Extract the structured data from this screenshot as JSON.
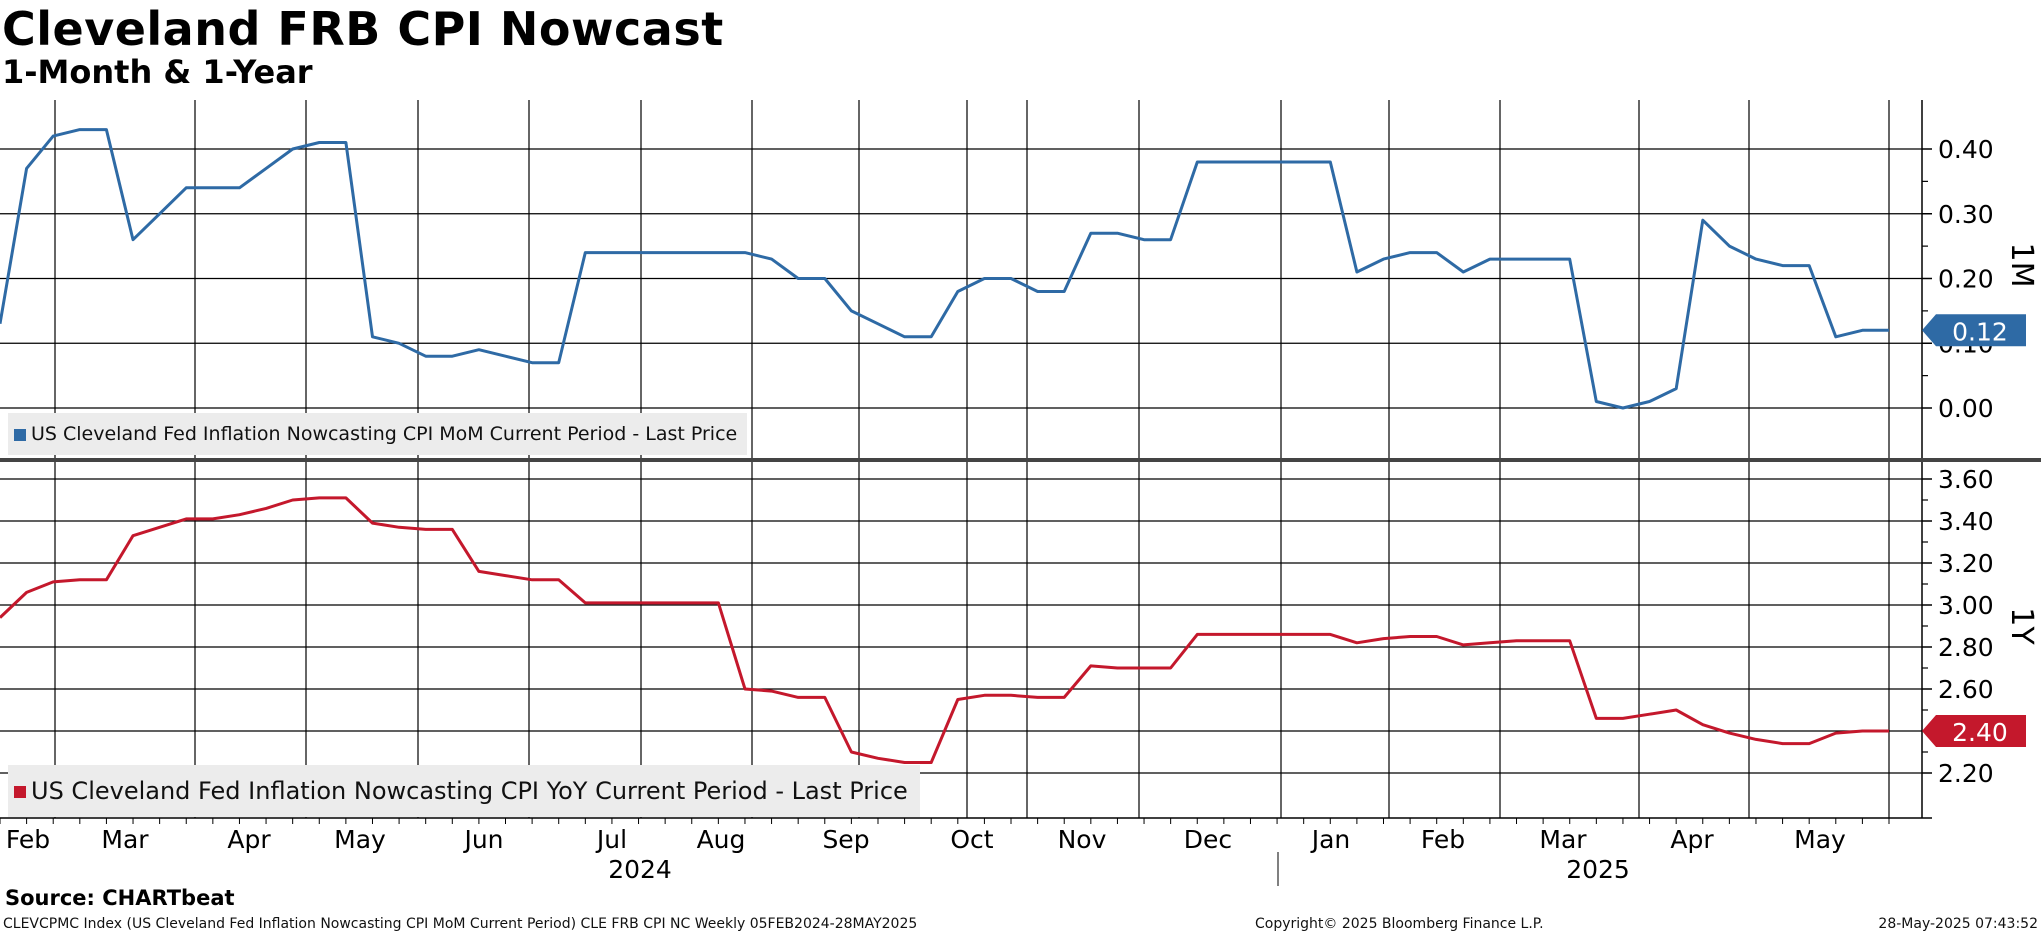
{
  "title": "Cleveland FRB CPI Nowcast",
  "subtitle": "1-Month & 1-Year",
  "source_label": "Source: CHARTbeat",
  "footer": {
    "left": "CLEVCPMC Index (US Cleveland Fed Inflation Nowcasting CPI MoM Current Period) CLE FRB CPI NC  Weekly 05FEB2024-28MAY2025",
    "center": "Copyright© 2025 Bloomberg Finance L.P.",
    "right": "28-May-2025 07:43:52"
  },
  "colors": {
    "mom": "#2e6aa5",
    "yoy": "#c4182c"
  },
  "chart_data": [
    {
      "type": "line",
      "panel": "top",
      "axis_label": "1M",
      "series": [
        {
          "name": "US Cleveland Fed Inflation Nowcasting CPI MoM Current Period - Last Price",
          "values": [
            0.13,
            0.37,
            0.42,
            0.43,
            0.43,
            0.26,
            0.3,
            0.34,
            0.34,
            0.34,
            0.37,
            0.4,
            0.41,
            0.41,
            0.11,
            0.1,
            0.08,
            0.08,
            0.09,
            0.08,
            0.07,
            0.07,
            0.24,
            0.24,
            0.24,
            0.24,
            0.24,
            0.24,
            0.24,
            0.23,
            0.2,
            0.2,
            0.15,
            0.13,
            0.11,
            0.11,
            0.18,
            0.2,
            0.2,
            0.18,
            0.18,
            0.27,
            0.27,
            0.26,
            0.26,
            0.38,
            0.38,
            0.38,
            0.38,
            0.38,
            0.38,
            0.21,
            0.23,
            0.24,
            0.24,
            0.21,
            0.23,
            0.23,
            0.23,
            0.23,
            0.01,
            0.0,
            0.01,
            0.03,
            0.29,
            0.25,
            0.23,
            0.22,
            0.22,
            0.11,
            0.12,
            0.12
          ]
        }
      ],
      "last_value_label": "0.12",
      "ylim": [
        -0.07,
        0.48
      ],
      "y_ticks": [
        "0.00",
        "0.10",
        "0.20",
        "0.30",
        "0.40"
      ],
      "grid": true
    },
    {
      "type": "line",
      "panel": "bottom",
      "axis_label": "1Y",
      "series": [
        {
          "name": "US Cleveland Fed Inflation Nowcasting CPI YoY Current Period - Last Price",
          "values": [
            2.94,
            3.06,
            3.11,
            3.12,
            3.12,
            3.33,
            3.37,
            3.41,
            3.41,
            3.43,
            3.46,
            3.5,
            3.51,
            3.51,
            3.39,
            3.37,
            3.36,
            3.36,
            3.16,
            3.14,
            3.12,
            3.12,
            3.01,
            3.01,
            3.01,
            3.01,
            3.01,
            3.01,
            2.6,
            2.59,
            2.56,
            2.56,
            2.3,
            2.27,
            2.25,
            2.25,
            2.55,
            2.57,
            2.57,
            2.56,
            2.56,
            2.71,
            2.7,
            2.7,
            2.7,
            2.86,
            2.86,
            2.86,
            2.86,
            2.86,
            2.86,
            2.82,
            2.84,
            2.85,
            2.85,
            2.81,
            2.82,
            2.83,
            2.83,
            2.83,
            2.46,
            2.46,
            2.48,
            2.5,
            2.43,
            2.39,
            2.36,
            2.34,
            2.34,
            2.39,
            2.4,
            2.4
          ]
        }
      ],
      "last_value_label": "2.40",
      "ylim": [
        2.0,
        3.64
      ],
      "y_ticks": [
        "2.20",
        "2.40",
        "2.60",
        "2.80",
        "3.00",
        "3.20",
        "3.40",
        "3.60"
      ],
      "grid": true
    }
  ],
  "x_axis": {
    "month_labels": [
      "Feb",
      "Mar",
      "Apr",
      "May",
      "Jun",
      "Jul",
      "Aug",
      "Sep",
      "Oct",
      "Nov",
      "Dec",
      "Jan",
      "Feb",
      "Mar",
      "Apr",
      "May"
    ],
    "years": [
      "2024",
      "2025"
    ]
  }
}
